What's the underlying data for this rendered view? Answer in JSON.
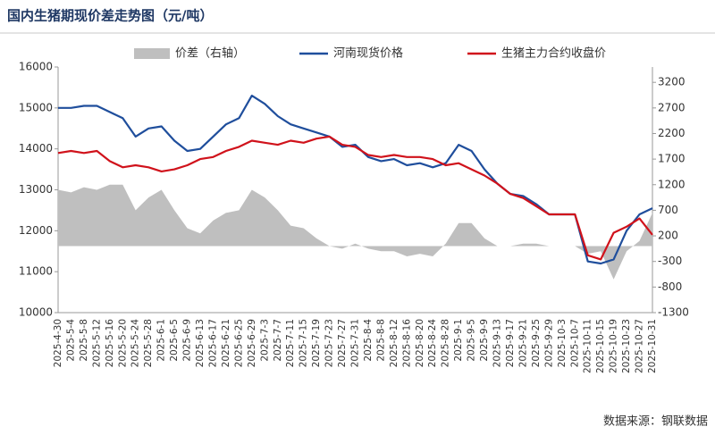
{
  "chart_data": {
    "type": "line",
    "title": "国内生猪期现价差走势图（元/吨）",
    "source": "数据来源：钢联数据",
    "categories": [
      "2025-4-30",
      "2025-5-4",
      "2025-5-8",
      "2025-5-12",
      "2025-5-16",
      "2025-5-20",
      "2025-5-24",
      "2025-5-28",
      "2025-6-1",
      "2025-6-5",
      "2025-6-9",
      "2025-6-13",
      "2025-6-17",
      "2025-6-21",
      "2025-6-25",
      "2025-6-29",
      "2025-7-3",
      "2025-7-7",
      "2025-7-11",
      "2025-7-15",
      "2025-7-19",
      "2025-7-23",
      "2025-7-27",
      "2025-7-31",
      "2025-8-4",
      "2025-8-8",
      "2025-8-12",
      "2025-8-16",
      "2025-8-20",
      "2025-8-24",
      "2025-8-28",
      "2025-9-1",
      "2025-9-5",
      "2025-9-9",
      "2025-9-13",
      "2025-9-17",
      "2025-9-21",
      "2025-9-25",
      "2025-9-29",
      "2025-10-3",
      "2025-10-7",
      "2025-10-11",
      "2025-10-15",
      "2025-10-19",
      "2025-10-23",
      "2025-10-27",
      "2025-10-31"
    ],
    "series": [
      {
        "name": "价差（右轴）",
        "color": "#bfbfbf",
        "type": "area",
        "axis": "y2",
        "values": [
          1100,
          1050,
          1150,
          1100,
          1200,
          1200,
          700,
          950,
          1100,
          700,
          350,
          250,
          500,
          650,
          700,
          1100,
          950,
          700,
          400,
          350,
          150,
          0,
          -50,
          50,
          -50,
          -100,
          -100,
          -200,
          -150,
          -200,
          50,
          450,
          450,
          150,
          0,
          0,
          50,
          50,
          0,
          0,
          0,
          -150,
          -100,
          -650,
          -100,
          100,
          650
        ]
      },
      {
        "name": "河南现货价格",
        "color": "#1f4e9c",
        "values": [
          15000,
          15000,
          15050,
          15050,
          14900,
          14750,
          14300,
          14500,
          14550,
          14200,
          13950,
          14000,
          14300,
          14600,
          14750,
          15300,
          15100,
          14800,
          14600,
          14500,
          14400,
          14300,
          14050,
          14100,
          13800,
          13700,
          13750,
          13600,
          13650,
          13550,
          13650,
          14100,
          13950,
          13500,
          13150,
          12900,
          12850,
          12650,
          12400,
          12400,
          12400,
          11250,
          11200,
          11300,
          12000,
          12400,
          12550
        ]
      },
      {
        "name": "生猪主力合约收盘价",
        "color": "#d0121b",
        "values": [
          13900,
          13950,
          13900,
          13950,
          13700,
          13550,
          13600,
          13550,
          13450,
          13500,
          13600,
          13750,
          13800,
          13950,
          14050,
          14200,
          14150,
          14100,
          14200,
          14150,
          14250,
          14300,
          14100,
          14050,
          13850,
          13800,
          13850,
          13800,
          13800,
          13750,
          13600,
          13650,
          13500,
          13350,
          13150,
          12900,
          12800,
          12600,
          12400,
          12400,
          12400,
          11400,
          11300,
          11950,
          12100,
          12300,
          11900
        ]
      }
    ],
    "ylim": [
      10000,
      16000
    ],
    "yticks": [
      10000,
      11000,
      12000,
      13000,
      14000,
      15000,
      16000
    ],
    "y2lim": [
      -1300,
      3500
    ],
    "y2ticks": [
      -1300,
      -800,
      -300,
      200,
      700,
      1200,
      1700,
      2200,
      2700,
      3200
    ]
  }
}
